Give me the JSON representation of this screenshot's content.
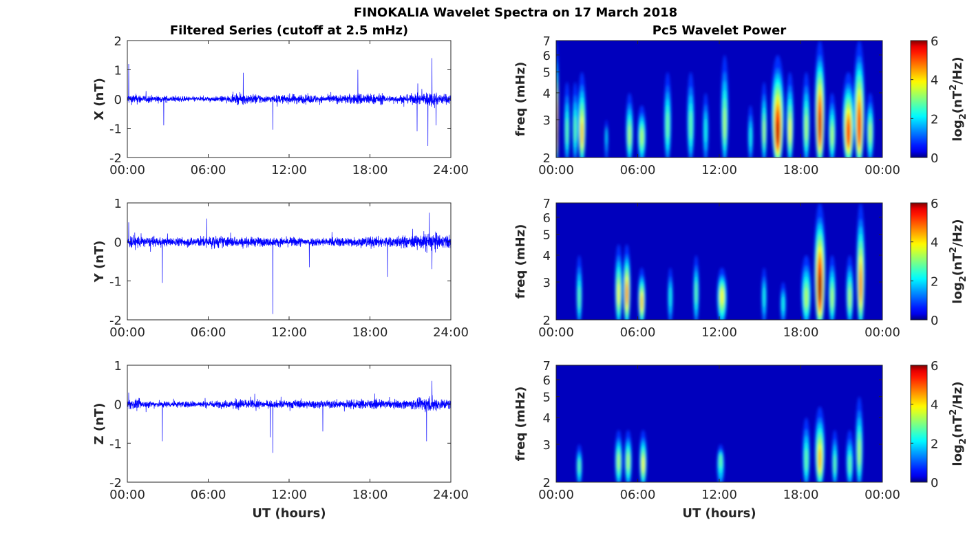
{
  "figure": {
    "title": "FINOKALIA Wavelet Spectra on 17 March 2018",
    "left_column_title": "Filtered Series (cutoff at 2.5 mHz)",
    "right_column_title": "Pc5 Wavelet Power",
    "xlabel": "UT (hours)"
  },
  "chart_data": [
    {
      "type": "line",
      "name": "X",
      "ylabel": "X (nT)",
      "xlim": [
        0,
        24
      ],
      "ylim": [
        -2,
        2
      ],
      "xticks": [
        "00:00",
        "06:00",
        "12:00",
        "18:00",
        "24:00"
      ],
      "yticks": [
        "-2",
        "-1",
        "0",
        "1",
        "2"
      ],
      "yticks_values": [
        -2,
        -1,
        0,
        1,
        2
      ],
      "color": "#0000ff",
      "noise_amplitude_by_hour": [
        0.3,
        0.22,
        0.2,
        0.18,
        0.16,
        0.15,
        0.16,
        0.2,
        0.32,
        0.3,
        0.22,
        0.25,
        0.3,
        0.26,
        0.22,
        0.26,
        0.3,
        0.38,
        0.32,
        0.22,
        0.26,
        0.32,
        0.48,
        0.32
      ],
      "spikes": [
        [
          0.1,
          1.2
        ],
        [
          2.7,
          -0.9
        ],
        [
          8.6,
          0.9
        ],
        [
          10.8,
          -1.05
        ],
        [
          17.1,
          1.0
        ],
        [
          21.5,
          -1.1
        ],
        [
          22.3,
          -1.6
        ],
        [
          22.6,
          1.4
        ],
        [
          22.9,
          -0.9
        ]
      ]
    },
    {
      "type": "line",
      "name": "Y",
      "ylabel": "Y (nT)",
      "xlim": [
        0,
        24
      ],
      "ylim": [
        -2,
        1
      ],
      "xticks": [
        "00:00",
        "06:00",
        "12:00",
        "18:00",
        "24:00"
      ],
      "yticks": [
        "-2",
        "-1",
        "0",
        "1"
      ],
      "yticks_values": [
        -2,
        -1,
        0,
        1
      ],
      "color": "#0000ff",
      "noise_amplitude_by_hour": [
        0.3,
        0.22,
        0.2,
        0.2,
        0.22,
        0.25,
        0.28,
        0.25,
        0.22,
        0.22,
        0.2,
        0.2,
        0.22,
        0.2,
        0.2,
        0.22,
        0.22,
        0.25,
        0.25,
        0.25,
        0.28,
        0.3,
        0.45,
        0.3
      ],
      "spikes": [
        [
          0.1,
          0.5
        ],
        [
          2.6,
          -1.05
        ],
        [
          5.9,
          0.6
        ],
        [
          10.8,
          -1.85
        ],
        [
          13.5,
          -0.65
        ],
        [
          19.3,
          -0.9
        ],
        [
          22.4,
          0.75
        ],
        [
          22.6,
          -0.7
        ]
      ]
    },
    {
      "type": "line",
      "name": "Z",
      "ylabel": "Z (nT)",
      "xlim": [
        0,
        24
      ],
      "ylim": [
        -2,
        1
      ],
      "xticks": [
        "00:00",
        "06:00",
        "12:00",
        "18:00",
        "24:00"
      ],
      "yticks": [
        "-2",
        "-1",
        "0",
        "1"
      ],
      "yticks_values": [
        -2,
        -1,
        0,
        1
      ],
      "color": "#0000ff",
      "noise_amplitude_by_hour": [
        0.22,
        0.16,
        0.15,
        0.15,
        0.15,
        0.15,
        0.16,
        0.18,
        0.24,
        0.2,
        0.16,
        0.18,
        0.2,
        0.18,
        0.16,
        0.2,
        0.2,
        0.22,
        0.2,
        0.18,
        0.2,
        0.25,
        0.35,
        0.25
      ],
      "spikes": [
        [
          0.1,
          0.3
        ],
        [
          2.6,
          -0.95
        ],
        [
          10.6,
          -0.85
        ],
        [
          10.8,
          -1.25
        ],
        [
          14.5,
          -0.7
        ],
        [
          22.2,
          -0.95
        ],
        [
          22.6,
          0.6
        ]
      ]
    },
    {
      "type": "heatmap",
      "name": "X wavelet power",
      "ylabel": "freq (mHz)",
      "xlim": [
        0,
        24
      ],
      "ylim_mHz": [
        2,
        7
      ],
      "yscale": "log",
      "xticks": [
        "00:00",
        "06:00",
        "12:00",
        "18:00",
        "00:00"
      ],
      "yticks": [
        "2",
        "3",
        "4",
        "5",
        "6",
        "7"
      ],
      "yticks_values": [
        2,
        3,
        4,
        5,
        6,
        7
      ],
      "colorbar": {
        "label_parts": [
          "log",
          "2",
          "(nT",
          "2",
          "/Hz)"
        ],
        "range": [
          0,
          6
        ],
        "ticks": [
          "0",
          "2",
          "4",
          "6"
        ],
        "colormap": "jet"
      },
      "bursts_hour_freq_power_halfwidth_topfreq": [
        [
          0.05,
          2.6,
          5.5,
          0.12,
          7
        ],
        [
          0.8,
          2.6,
          2.5,
          0.22,
          4.5
        ],
        [
          1.4,
          2.7,
          2.5,
          0.22,
          4.5
        ],
        [
          1.9,
          2.5,
          4,
          0.3,
          5
        ],
        [
          3.7,
          2.6,
          1.8,
          0.13,
          3
        ],
        [
          5.4,
          2.5,
          3,
          0.28,
          4
        ],
        [
          6.3,
          2.5,
          3,
          0.32,
          3.5
        ],
        [
          8.2,
          2.8,
          2.6,
          0.28,
          5
        ],
        [
          9.9,
          2.8,
          2.5,
          0.28,
          5
        ],
        [
          11,
          2.7,
          2,
          0.22,
          4
        ],
        [
          12.4,
          2.8,
          3,
          0.28,
          6
        ],
        [
          14.3,
          2.5,
          2,
          0.2,
          3.5
        ],
        [
          15.3,
          2.6,
          3,
          0.22,
          4.5
        ],
        [
          16.3,
          2.5,
          5.6,
          0.48,
          6
        ],
        [
          17.2,
          2.6,
          3.5,
          0.28,
          5
        ],
        [
          18.4,
          2.7,
          3,
          0.28,
          5
        ],
        [
          19.4,
          2.7,
          5.6,
          0.38,
          7
        ],
        [
          20.3,
          2.5,
          3,
          0.28,
          4
        ],
        [
          21.5,
          2.5,
          5,
          0.45,
          5
        ],
        [
          22.3,
          2.6,
          5.2,
          0.4,
          7
        ],
        [
          23.1,
          2.6,
          3,
          0.28,
          4
        ]
      ]
    },
    {
      "type": "heatmap",
      "name": "Y wavelet power",
      "ylabel": "freq (mHz)",
      "xlim": [
        0,
        24
      ],
      "ylim_mHz": [
        2,
        7
      ],
      "yscale": "log",
      "xticks": [
        "00:00",
        "06:00",
        "12:00",
        "18:00",
        "00:00"
      ],
      "yticks": [
        "2",
        "3",
        "4",
        "5",
        "6",
        "7"
      ],
      "yticks_values": [
        2,
        3,
        4,
        5,
        6,
        7
      ],
      "colorbar": {
        "label_parts": [
          "log",
          "2",
          "(nT",
          "2",
          "/Hz)"
        ],
        "range": [
          0,
          6
        ],
        "ticks": [
          "0",
          "2",
          "4",
          "6"
        ],
        "colormap": "jet"
      },
      "bursts_hour_freq_power_halfwidth_topfreq": [
        [
          1.7,
          2.5,
          2.5,
          0.22,
          4
        ],
        [
          4.6,
          2.6,
          3.5,
          0.28,
          4.5
        ],
        [
          5.2,
          2.6,
          4.5,
          0.28,
          4.5
        ],
        [
          6.3,
          2.4,
          4,
          0.28,
          3.5
        ],
        [
          8.4,
          2.6,
          2,
          0.2,
          3.5
        ],
        [
          10.3,
          2.7,
          2.5,
          0.22,
          4
        ],
        [
          12.2,
          2.6,
          3.5,
          0.38,
          3.5
        ],
        [
          15.3,
          2.6,
          2,
          0.2,
          3.5
        ],
        [
          16.7,
          2.4,
          2,
          0.22,
          3
        ],
        [
          18.4,
          2.5,
          3,
          0.38,
          4
        ],
        [
          19.4,
          2.7,
          6,
          0.42,
          7
        ],
        [
          20.3,
          2.5,
          3,
          0.28,
          4
        ],
        [
          21.6,
          2.5,
          3,
          0.28,
          4
        ],
        [
          22.4,
          2.8,
          4.5,
          0.32,
          7
        ]
      ]
    },
    {
      "type": "heatmap",
      "name": "Z wavelet power",
      "ylabel": "freq (mHz)",
      "xlim": [
        0,
        24
      ],
      "ylim_mHz": [
        2,
        7
      ],
      "yscale": "log",
      "xticks": [
        "00:00",
        "06:00",
        "12:00",
        "18:00",
        "00:00"
      ],
      "yticks": [
        "2",
        "3",
        "4",
        "5",
        "6",
        "7"
      ],
      "yticks_values": [
        2,
        3,
        4,
        5,
        6,
        7
      ],
      "colorbar": {
        "label_parts": [
          "log",
          "2",
          "(nT",
          "2",
          "/Hz)"
        ],
        "range": [
          0,
          6
        ],
        "ticks": [
          "0",
          "2",
          "4",
          "6"
        ],
        "colormap": "jet"
      },
      "bursts_hour_freq_power_halfwidth_topfreq": [
        [
          1.7,
          2.4,
          2.5,
          0.22,
          3
        ],
        [
          4.6,
          2.5,
          3,
          0.28,
          3.5
        ],
        [
          5.3,
          2.5,
          3,
          0.28,
          3.5
        ],
        [
          6.4,
          2.4,
          3.5,
          0.28,
          3.5
        ],
        [
          12.1,
          2.6,
          2.5,
          0.28,
          3
        ],
        [
          18.4,
          2.5,
          2.5,
          0.28,
          4
        ],
        [
          19.4,
          2.5,
          4,
          0.38,
          4.5
        ],
        [
          20.5,
          2.4,
          2.5,
          0.22,
          3.5
        ],
        [
          21.6,
          2.4,
          2.5,
          0.28,
          3.5
        ],
        [
          22.3,
          2.7,
          3,
          0.28,
          5
        ]
      ]
    }
  ]
}
